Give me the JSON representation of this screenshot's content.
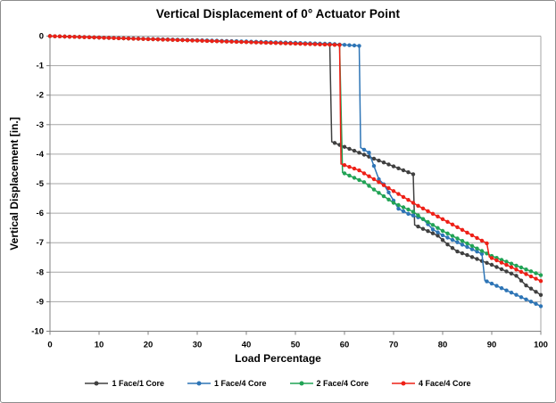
{
  "chart_data": {
    "type": "line",
    "title": "Vertical Displacement of 0° Actuator Point",
    "xlabel": "Load Percentage",
    "ylabel": "Vertical Displacement  [in.]",
    "xlim": [
      0,
      100
    ],
    "ylim": [
      -10,
      0
    ],
    "x_ticks": [
      0,
      10,
      20,
      30,
      40,
      50,
      60,
      70,
      80,
      90,
      100
    ],
    "y_ticks": [
      0,
      -1,
      -2,
      -3,
      -4,
      -5,
      -6,
      -7,
      -8,
      -9,
      -10
    ],
    "grid": "horizontal",
    "legend_position": "bottom-center",
    "marker_every_x": 1,
    "styles": {
      "grid_color": "#A6A6A6",
      "axis_color": "#808080",
      "text_color": "#000000",
      "background": "#FFFFFF",
      "border_color": "#8C8C8C"
    },
    "series": [
      {
        "name": "1 Face/1 Core",
        "color": "#404040",
        "anchors": [
          [
            0,
            0
          ],
          [
            57,
            -0.28
          ],
          [
            57.4,
            -3.58
          ],
          [
            74,
            -4.68
          ],
          [
            74.3,
            -6.4
          ],
          [
            79,
            -6.76
          ],
          [
            81,
            -7.06
          ],
          [
            83,
            -7.3
          ],
          [
            85,
            -7.42
          ],
          [
            90,
            -7.75
          ],
          [
            95,
            -8.12
          ],
          [
            97,
            -8.45
          ],
          [
            100,
            -8.77
          ]
        ]
      },
      {
        "name": "1 Face/4 Core",
        "color": "#2E75B6",
        "anchors": [
          [
            0,
            0
          ],
          [
            57,
            -0.26
          ],
          [
            63,
            -0.33
          ],
          [
            63.3,
            -3.78
          ],
          [
            65,
            -3.95
          ],
          [
            67,
            -4.85
          ],
          [
            68,
            -5.02
          ],
          [
            71,
            -5.85
          ],
          [
            73,
            -6.02
          ],
          [
            76,
            -6.2
          ],
          [
            78,
            -6.55
          ],
          [
            80,
            -6.75
          ],
          [
            88,
            -7.38
          ],
          [
            88.6,
            -8.28
          ],
          [
            100,
            -9.15
          ]
        ]
      },
      {
        "name": "2 Face/4 Core",
        "color": "#21A355",
        "anchors": [
          [
            0,
            0
          ],
          [
            59,
            -0.3
          ],
          [
            59.6,
            -4.62
          ],
          [
            64,
            -4.95
          ],
          [
            66,
            -5.2
          ],
          [
            70,
            -5.65
          ],
          [
            74,
            -5.95
          ],
          [
            76,
            -6.2
          ],
          [
            80,
            -6.6
          ],
          [
            90,
            -7.45
          ],
          [
            100,
            -8.1
          ]
        ]
      },
      {
        "name": "4 Face/4 Core",
        "color": "#EE2017",
        "anchors": [
          [
            0,
            0
          ],
          [
            59,
            -0.3
          ],
          [
            59.3,
            -4.33
          ],
          [
            63,
            -4.55
          ],
          [
            75,
            -5.75
          ],
          [
            89,
            -7.02
          ],
          [
            89.5,
            -7.48
          ],
          [
            100,
            -8.3
          ]
        ]
      }
    ]
  }
}
